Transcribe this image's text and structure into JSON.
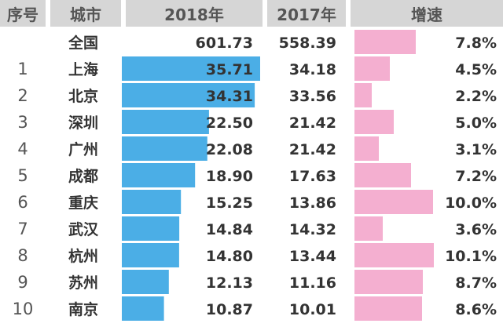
{
  "headers": {
    "rank": "序号",
    "city": "城市",
    "y2018": "2018年",
    "y2017": "2017年",
    "growth": "增速"
  },
  "colors": {
    "header_bg": "#d6d6d6",
    "bar_2018": "#4baee6",
    "bar_growth": "#f4afd0"
  },
  "chart_data": {
    "type": "table",
    "columns": [
      "序号",
      "城市",
      "2018年",
      "2017年",
      "增速"
    ],
    "rows": [
      {
        "rank": "",
        "city": "全国",
        "v2018": 601.73,
        "v2018_label": "601.73",
        "v2017": "558.39",
        "growth": 7.8,
        "growth_label": "7.8%"
      },
      {
        "rank": "1",
        "city": "上海",
        "v2018": 35.71,
        "v2018_label": "35.71",
        "v2017": "34.18",
        "growth": 4.5,
        "growth_label": "4.5%"
      },
      {
        "rank": "2",
        "city": "北京",
        "v2018": 34.31,
        "v2018_label": "34.31",
        "v2017": "33.56",
        "growth": 2.2,
        "growth_label": "2.2%"
      },
      {
        "rank": "3",
        "city": "深圳",
        "v2018": 22.5,
        "v2018_label": "22.50",
        "v2017": "21.42",
        "growth": 5.0,
        "growth_label": "5.0%"
      },
      {
        "rank": "4",
        "city": "广州",
        "v2018": 22.08,
        "v2018_label": "22.08",
        "v2017": "21.42",
        "growth": 3.1,
        "growth_label": "3.1%"
      },
      {
        "rank": "5",
        "city": "成都",
        "v2018": 18.9,
        "v2018_label": "18.90",
        "v2017": "17.63",
        "growth": 7.2,
        "growth_label": "7.2%"
      },
      {
        "rank": "6",
        "city": "重庆",
        "v2018": 15.25,
        "v2018_label": "15.25",
        "v2017": "13.86",
        "growth": 10.0,
        "growth_label": "10.0%"
      },
      {
        "rank": "7",
        "city": "武汉",
        "v2018": 14.84,
        "v2018_label": "14.84",
        "v2017": "14.32",
        "growth": 3.6,
        "growth_label": "3.6%"
      },
      {
        "rank": "8",
        "city": "杭州",
        "v2018": 14.8,
        "v2018_label": "14.80",
        "v2017": "13.44",
        "growth": 10.1,
        "growth_label": "10.1%"
      },
      {
        "rank": "9",
        "city": "苏州",
        "v2018": 12.13,
        "v2018_label": "12.13",
        "v2017": "11.16",
        "growth": 8.7,
        "growth_label": "8.7%"
      },
      {
        "rank": "10",
        "city": "南京",
        "v2018": 10.87,
        "v2018_label": "10.87",
        "v2017": "10.01",
        "growth": 8.6,
        "growth_label": "8.6%"
      }
    ]
  }
}
